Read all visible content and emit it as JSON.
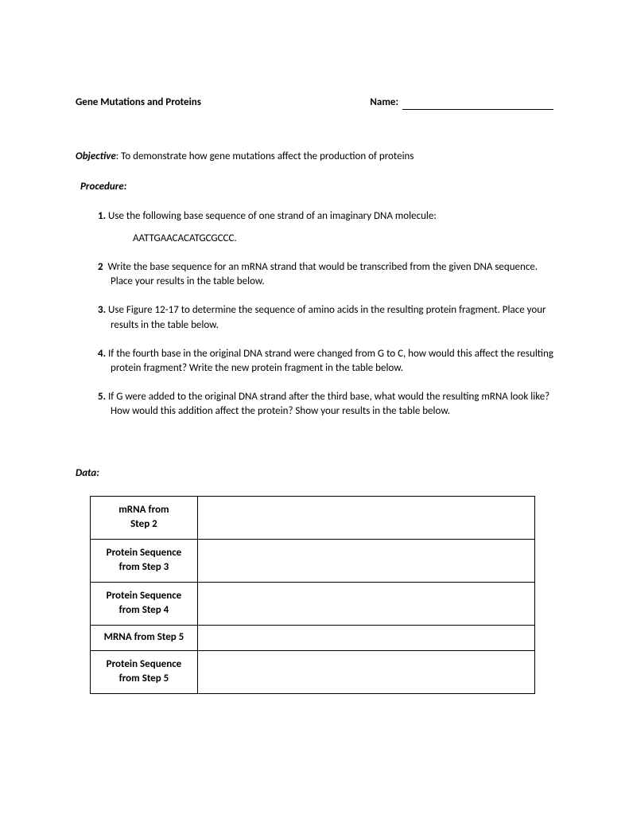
{
  "header": {
    "title": "Gene Mutations and Proteins",
    "name_label": "Name:"
  },
  "objective": {
    "label": "Objective",
    "text": ":  To demonstrate how gene mutations affect the production of proteins"
  },
  "procedure": {
    "label": "Procedure",
    "steps": [
      {
        "num": "1.",
        "text": "Use the following base sequence of one strand of an imaginary DNA molecule:"
      },
      {
        "num": "2",
        "text": "Write the base sequence for an mRNA strand that would be transcribed from the given DNA sequence.  Place your results in the table below."
      },
      {
        "num": "3.",
        "text": "Use Figure 12-17 to determine the sequence of amino acids in the resulting protein fragment.  Place your results in the table below."
      },
      {
        "num": "4.",
        "text": "If the fourth base in the original DNA strand were changed from G to C, how would this affect the resulting protein fragment?  Write the new protein fragment in the table below."
      },
      {
        "num": "5.",
        "text": "If G were added to the original DNA strand after the third base, what would the resulting mRNA look like?   How would this addition affect the protein?  Show your results in the table below."
      }
    ],
    "dna_sequence": "AATTGAACACATGCGCCC."
  },
  "data": {
    "label": "Data:",
    "rows": [
      {
        "label_line1": "mRNA from",
        "label_line2": "Step 2",
        "value": ""
      },
      {
        "label_line1": "Protein Sequence",
        "label_line2": "from Step 3",
        "value": ""
      },
      {
        "label_line1": "Protein Sequence",
        "label_line2": "from Step 4",
        "value": ""
      },
      {
        "label_line1": "MRNA from Step 5",
        "label_line2": "",
        "value": ""
      },
      {
        "label_line1": "Protein Sequence",
        "label_line2": "from Step 5",
        "value": ""
      }
    ]
  }
}
